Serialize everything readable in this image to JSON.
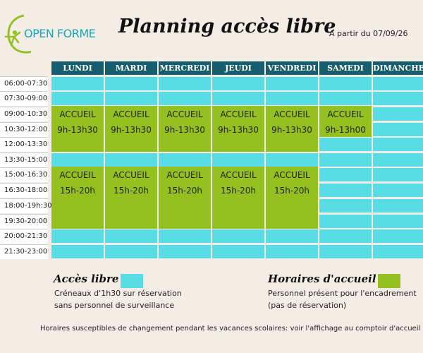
{
  "header": {
    "logo_text": "OPEN FORME",
    "title": "Planning accès libre",
    "date_text": "A partir du 07/09/26"
  },
  "days": [
    "LUNDI",
    "MARDI",
    "MERCREDI",
    "JEUDI",
    "VENDREDI",
    "SAMEDI",
    "DIMANCHE"
  ],
  "times": [
    "06:00-07:30",
    "07:30-09:00",
    "09:00-10:30",
    "10:30-12:00",
    "12:00-13:30",
    "13:30-15:00",
    "15:00-16:30",
    "16:30-18:00",
    "18:00-19h:30",
    "19:30-20:00",
    "20:00-21:30",
    "21:30-23:00"
  ],
  "accueil_blocks": [
    {
      "day": 0,
      "start_row": 2,
      "end_row": 4,
      "label": "ACCUEIL",
      "hours": "9h-13h30"
    },
    {
      "day": 1,
      "start_row": 2,
      "end_row": 4,
      "label": "ACCUEIL",
      "hours": "9h-13h30"
    },
    {
      "day": 2,
      "start_row": 2,
      "end_row": 4,
      "label": "ACCUEIL",
      "hours": "9h-13h30"
    },
    {
      "day": 3,
      "start_row": 2,
      "end_row": 4,
      "label": "ACCUEIL",
      "hours": "9h-13h30"
    },
    {
      "day": 4,
      "start_row": 2,
      "end_row": 4,
      "label": "ACCUEIL",
      "hours": "9h-13h30"
    },
    {
      "day": 5,
      "start_row": 2,
      "end_row": 3,
      "label": "ACCUEIL",
      "hours": "9h-13h00"
    },
    {
      "day": 0,
      "start_row": 6,
      "end_row": 9,
      "label": "ACCUEIL",
      "hours": "15h-20h"
    },
    {
      "day": 1,
      "start_row": 6,
      "end_row": 9,
      "label": "ACCUEIL",
      "hours": "15h-20h"
    },
    {
      "day": 2,
      "start_row": 6,
      "end_row": 9,
      "label": "ACCUEIL",
      "hours": "15h-20h"
    },
    {
      "day": 3,
      "start_row": 6,
      "end_row": 9,
      "label": "ACCUEIL",
      "hours": "15h-20h"
    },
    {
      "day": 4,
      "start_row": 6,
      "end_row": 9,
      "label": "ACCUEIL",
      "hours": "15h-20h"
    }
  ],
  "legend": {
    "libre_title": "Accès libre :",
    "libre_desc_1": "Créneaux d'1h30 sur réservation",
    "libre_desc_2": "sans personnel de surveillance",
    "accueil_title": "Horaires d'accueil :",
    "accueil_desc_1": "Personnel présent pour l'encadrement",
    "accueil_desc_2": "(pas de réservation)"
  },
  "footer": "Horaires susceptibles de changement pendant les vacances scolaires: voir l'affichage au comptoir d'accueil",
  "colors": {
    "libre": "#58dde6",
    "accueil": "#94c11f",
    "header": "#165e6e",
    "logo": "#1aa5b8"
  }
}
